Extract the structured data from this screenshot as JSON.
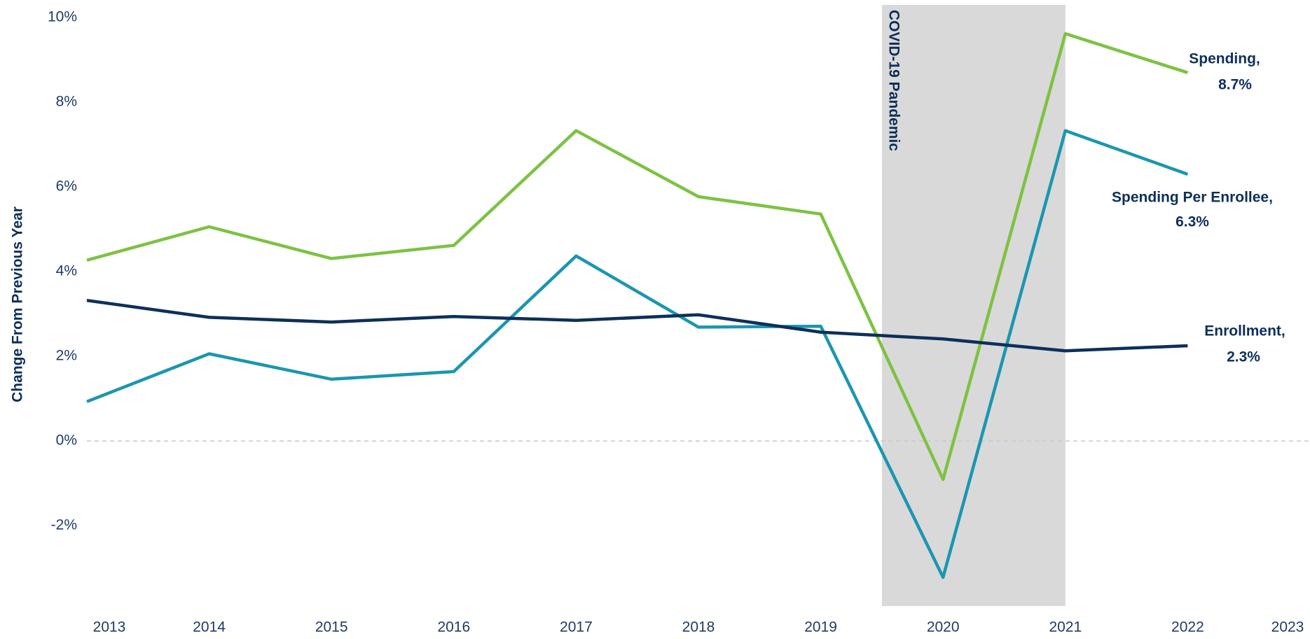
{
  "chart_data": {
    "type": "line",
    "y_axis_label": "Change From Previous Year",
    "x": [
      2013,
      2014,
      2015,
      2016,
      2017,
      2018,
      2019,
      2020,
      2021,
      2022
    ],
    "xlim": [
      2013,
      2023
    ],
    "xticks": [
      2013,
      2014,
      2015,
      2016,
      2017,
      2018,
      2019,
      2020,
      2021,
      2022,
      2023
    ],
    "ylim": [
      -3.9,
      10.3
    ],
    "yticks": [
      {
        "value": -2,
        "label": "-2%"
      },
      {
        "value": 0,
        "label": "0%"
      },
      {
        "value": 2,
        "label": "2%"
      },
      {
        "value": 4,
        "label": "4%"
      },
      {
        "value": 6,
        "label": "6%"
      },
      {
        "value": 8,
        "label": "8%"
      },
      {
        "value": 10,
        "label": "10%"
      }
    ],
    "grid": false,
    "zero_line": true,
    "shaded_region": {
      "from": 2019.5,
      "to": 2021,
      "label": "COVID-19 Pandemic",
      "color": "#d9d9d9"
    },
    "series": [
      {
        "label": [
          "Spending,",
          "8.7%"
        ],
        "color": "#7dc242",
        "values": [
          4.27,
          5.06,
          4.31,
          4.62,
          7.33,
          5.77,
          5.36,
          -0.91,
          9.62,
          8.7
        ]
      },
      {
        "label": [
          "Spending Per Enrollee,",
          "6.3%"
        ],
        "color": "#1b96b0",
        "values": [
          0.93,
          2.06,
          1.46,
          1.64,
          4.37,
          2.69,
          2.71,
          -3.22,
          7.33,
          6.3
        ]
      },
      {
        "label": [
          "Enrollment,",
          "2.3%"
        ],
        "color": "#0d2f5a",
        "values": [
          3.32,
          2.92,
          2.81,
          2.94,
          2.85,
          2.98,
          2.57,
          2.41,
          2.13,
          2.25
        ]
      }
    ]
  }
}
